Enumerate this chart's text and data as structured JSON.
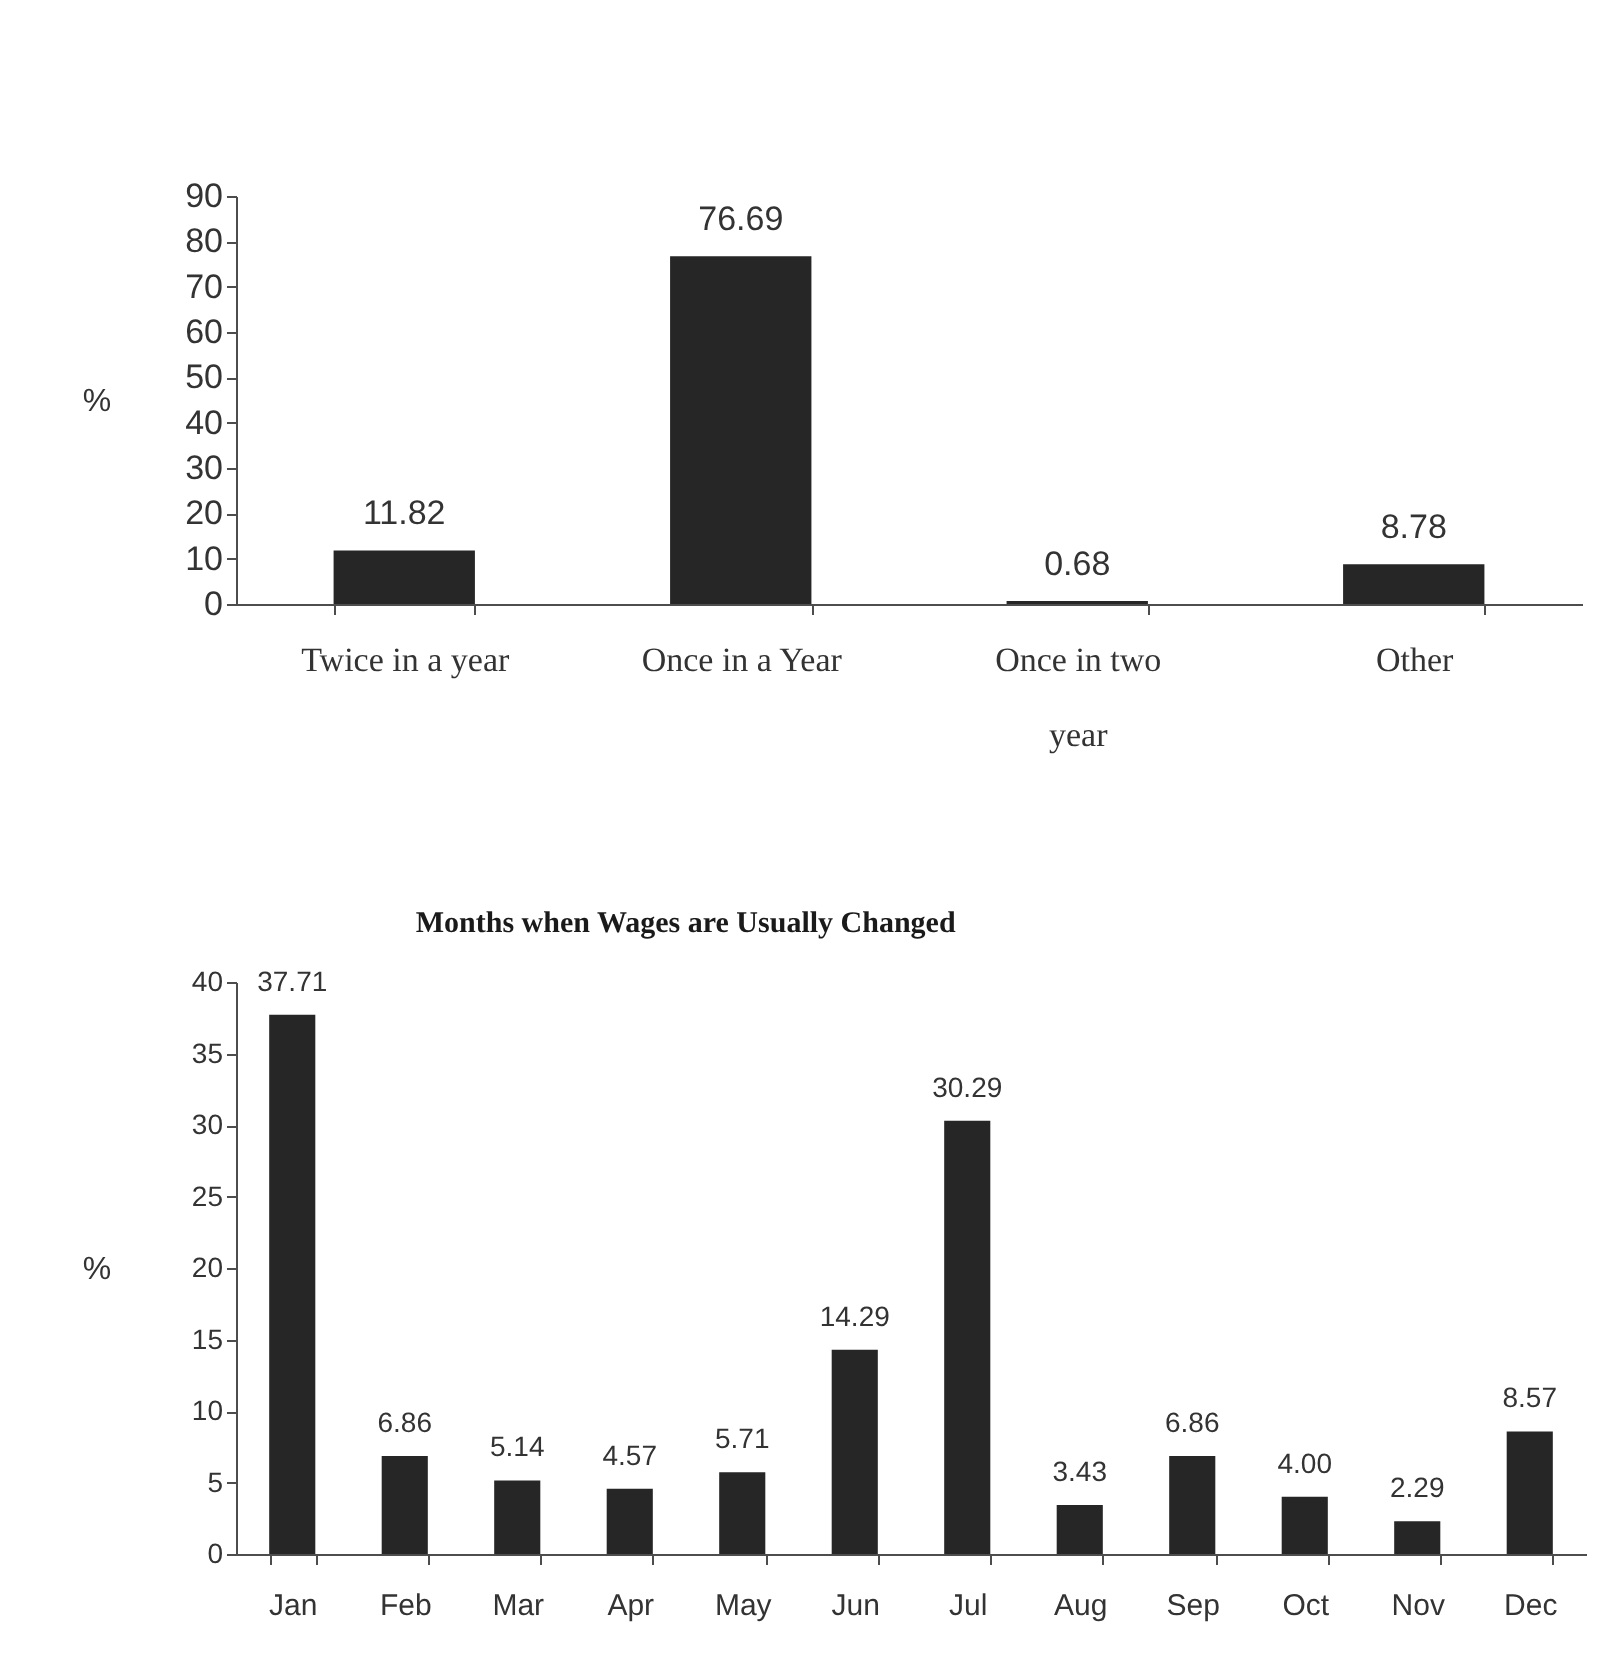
{
  "chart_data": [
    {
      "type": "bar",
      "categories": [
        "Twice in a year",
        "Once in a Year",
        "Once in two year",
        "Other"
      ],
      "values": [
        11.82,
        76.69,
        0.68,
        8.78
      ],
      "color": "#262626",
      "ylabel": "%",
      "ylim": [
        0,
        90
      ],
      "yticks": [
        0,
        10,
        20,
        30,
        40,
        50,
        60,
        70,
        80,
        90
      ],
      "data_labels": true
    },
    {
      "type": "bar",
      "title": "Months when Wages are Usually Changed",
      "categories": [
        "Jan",
        "Feb",
        "Mar",
        "Apr",
        "May",
        "Jun",
        "Jul",
        "Aug",
        "Sep",
        "Oct",
        "Nov",
        "Dec"
      ],
      "values": [
        37.71,
        6.86,
        5.14,
        4.57,
        5.71,
        14.29,
        30.29,
        3.43,
        6.86,
        4.0,
        2.29,
        8.57
      ],
      "value_labels": [
        "37.71",
        "6.86",
        "5.14",
        "4.57",
        "5.71",
        "14.29",
        "30.29",
        "3.43",
        "6.86",
        "4.00",
        "2.29",
        "8.57"
      ],
      "color": "#262626",
      "ylabel": "%",
      "ylim": [
        0,
        40
      ],
      "yticks": [
        0,
        5,
        10,
        15,
        20,
        25,
        30,
        35,
        40
      ]
    }
  ]
}
